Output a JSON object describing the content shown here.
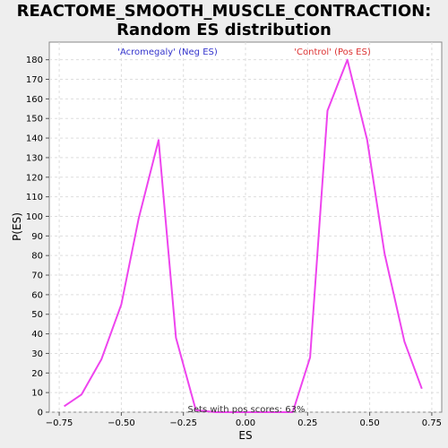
{
  "chart_data": {
    "type": "line",
    "title_line1": "REACTOME_SMOOTH_MUSCLE_CONTRACTION:",
    "title_line2": "Random ES distribution",
    "xlabel": "ES",
    "ylabel": "P(ES)",
    "xlim": [
      -0.79,
      0.79
    ],
    "ylim": [
      0,
      189
    ],
    "xticks": [
      -0.75,
      -0.5,
      -0.25,
      0.0,
      0.25,
      0.5,
      0.75
    ],
    "xtick_labels": [
      "−0.75",
      "−0.50",
      "−0.25",
      "0.00",
      "0.25",
      "0.50",
      "0.75"
    ],
    "yticks": [
      0,
      10,
      20,
      30,
      40,
      50,
      60,
      70,
      80,
      90,
      100,
      110,
      120,
      130,
      140,
      150,
      160,
      170,
      180
    ],
    "grid": true,
    "series": [
      {
        "color": "#ee44ee",
        "x": [
          -0.73,
          -0.66,
          -0.58,
          -0.5,
          -0.43,
          -0.35,
          -0.28,
          -0.2,
          -0.12,
          -0.05,
          0.03,
          0.11,
          0.19,
          0.26,
          0.33,
          0.41,
          0.49,
          0.56,
          0.64,
          0.71
        ],
        "y": [
          3,
          9,
          27,
          55,
          99,
          139,
          38,
          1,
          0,
          0,
          0,
          0,
          0,
          28,
          154,
          180,
          139,
          81,
          36,
          12
        ]
      }
    ],
    "annotations": {
      "neg": {
        "text": "'Acromegaly' (Neg ES)",
        "color": "#3333cc"
      },
      "pos": {
        "text": "'Control' (Pos ES)",
        "color": "#dd3333"
      },
      "footer": {
        "text": "Sets with pos scores: 63%",
        "color": "#333333"
      }
    }
  }
}
